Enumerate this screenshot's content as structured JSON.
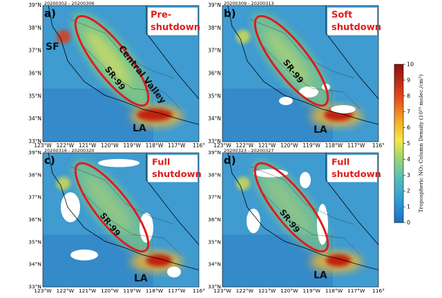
{
  "panels": [
    {
      "letter": "a)",
      "dates": "20200302 - 20200306",
      "label": [
        "Pre-",
        "shutdown"
      ],
      "annotations": [
        "SF",
        "Central Valley",
        "SR-99",
        "LA"
      ]
    },
    {
      "letter": "b)",
      "dates": "20200309 - 20200313",
      "label": [
        "Soft",
        "shutdown"
      ],
      "annotations": [
        "SR-99",
        "LA"
      ]
    },
    {
      "letter": "c)",
      "dates": "20200316 - 20200320",
      "label": [
        "Full",
        "shutdown"
      ],
      "annotations": [
        "SR-99",
        "LA"
      ]
    },
    {
      "letter": "d)",
      "dates": "20200323 - 20200327",
      "label": [
        "Full",
        "shutdown"
      ],
      "annotations": [
        "SR-99",
        "LA"
      ]
    }
  ],
  "lat_labels": [
    "39°N",
    "38°N",
    "37°N",
    "36°N",
    "35°N",
    "34°N",
    "33°N"
  ],
  "lon_labels": [
    "123°W",
    "122°W",
    "121°W",
    "120°W",
    "119°W",
    "118°W",
    "117°W",
    "116°"
  ],
  "colorbar": {
    "label": "Tropospheric NO₂ Column Density (10¹⁵ molec./cm²)",
    "lim": [
      0,
      10
    ],
    "ticks": [
      0,
      1,
      2,
      3,
      4,
      5,
      6,
      7,
      8,
      9,
      10
    ]
  }
}
